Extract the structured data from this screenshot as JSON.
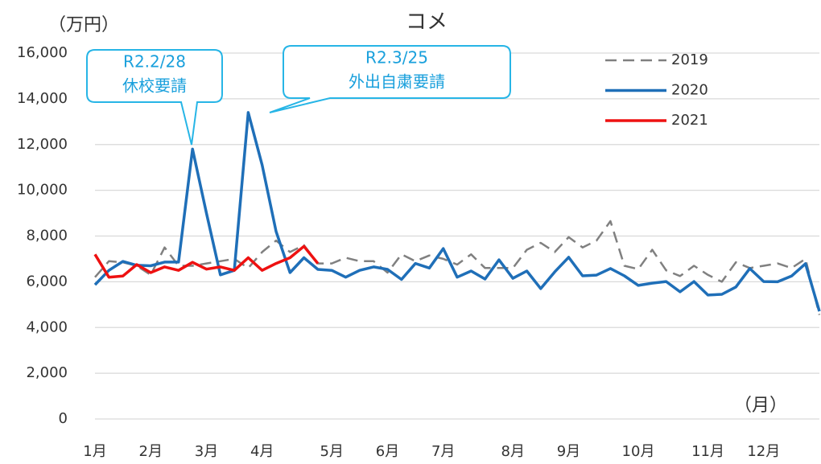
{
  "chart_data": {
    "type": "line",
    "title": "コメ",
    "y_label": "（万円）",
    "x_label": "（月）",
    "categories": [
      "1月",
      null,
      null,
      null,
      "2月",
      null,
      null,
      null,
      "3月",
      null,
      null,
      null,
      "4月",
      null,
      null,
      null,
      null,
      "5月",
      null,
      null,
      null,
      "6月",
      null,
      null,
      null,
      "7月",
      null,
      null,
      null,
      null,
      "8月",
      null,
      null,
      null,
      "9月",
      null,
      null,
      null,
      null,
      "10月",
      null,
      null,
      null,
      null,
      "11月",
      null,
      null,
      null,
      "12月",
      null,
      null,
      null,
      null
    ],
    "series": [
      {
        "name": "2019",
        "color": "#808080",
        "dashed": true,
        "values": [
          6200,
          6900,
          6850,
          6700,
          6300,
          7500,
          6700,
          6700,
          6800,
          6900,
          7000,
          6600,
          7300,
          7800,
          7300,
          7600,
          6800,
          6800,
          7050,
          6900,
          6900,
          6400,
          7200,
          6900,
          7150,
          7000,
          6750,
          7200,
          6600,
          6600,
          6600,
          7400,
          7700,
          7300,
          7950,
          7500,
          7800,
          8650,
          6700,
          6550,
          7400,
          6500,
          6250,
          6700,
          6300,
          6000,
          6850,
          6600,
          6700,
          6800,
          6600,
          7000,
          4550
        ]
      },
      {
        "name": "2020",
        "color": "#1f6fb8",
        "dashed": false,
        "values": [
          5870,
          6500,
          6890,
          6720,
          6700,
          6860,
          6860,
          11800,
          9000,
          6300,
          6500,
          13400,
          11100,
          8200,
          6400,
          7050,
          6540,
          6500,
          6200,
          6500,
          6650,
          6540,
          6100,
          6800,
          6600,
          7450,
          6200,
          6470,
          6120,
          6960,
          6150,
          6470,
          5700,
          6430,
          7070,
          6260,
          6290,
          6580,
          6260,
          5840,
          5940,
          6010,
          5560,
          6010,
          5420,
          5450,
          5770,
          6580,
          6010,
          6000,
          6250,
          6790,
          4710
        ]
      },
      {
        "name": "2021",
        "color": "#ee1111",
        "dashed": false,
        "values": [
          7200,
          6200,
          6250,
          6750,
          6400,
          6650,
          6500,
          6850,
          6550,
          6650,
          6500,
          7050,
          6500,
          6800,
          7050,
          7550,
          6800,
          null,
          null,
          null,
          null,
          null,
          null,
          null,
          null,
          null,
          null,
          null,
          null,
          null,
          null,
          null,
          null,
          null,
          null,
          null,
          null,
          null,
          null,
          null,
          null,
          null,
          null,
          null,
          null,
          null,
          null,
          null,
          null,
          null,
          null,
          null,
          null
        ]
      }
    ],
    "ylim": [
      0,
      16000
    ],
    "yticks": [
      {
        "value": 0,
        "label": "0"
      },
      {
        "value": 2000,
        "label": "2,000"
      },
      {
        "value": 4000,
        "label": "4,000"
      },
      {
        "value": 6000,
        "label": "6,000"
      },
      {
        "value": 8000,
        "label": "8,000"
      },
      {
        "value": 10000,
        "label": "10,000"
      },
      {
        "value": 12000,
        "label": "12,000"
      },
      {
        "value": 14000,
        "label": "14,000"
      },
      {
        "value": 16000,
        "label": "16,000"
      }
    ],
    "grid": true,
    "legend": "top-right",
    "annotations": [
      {
        "text": [
          "R2.2/28",
          "休校要請"
        ]
      },
      {
        "text": [
          "R2.3/25",
          "外出自粛要請"
        ]
      }
    ]
  }
}
